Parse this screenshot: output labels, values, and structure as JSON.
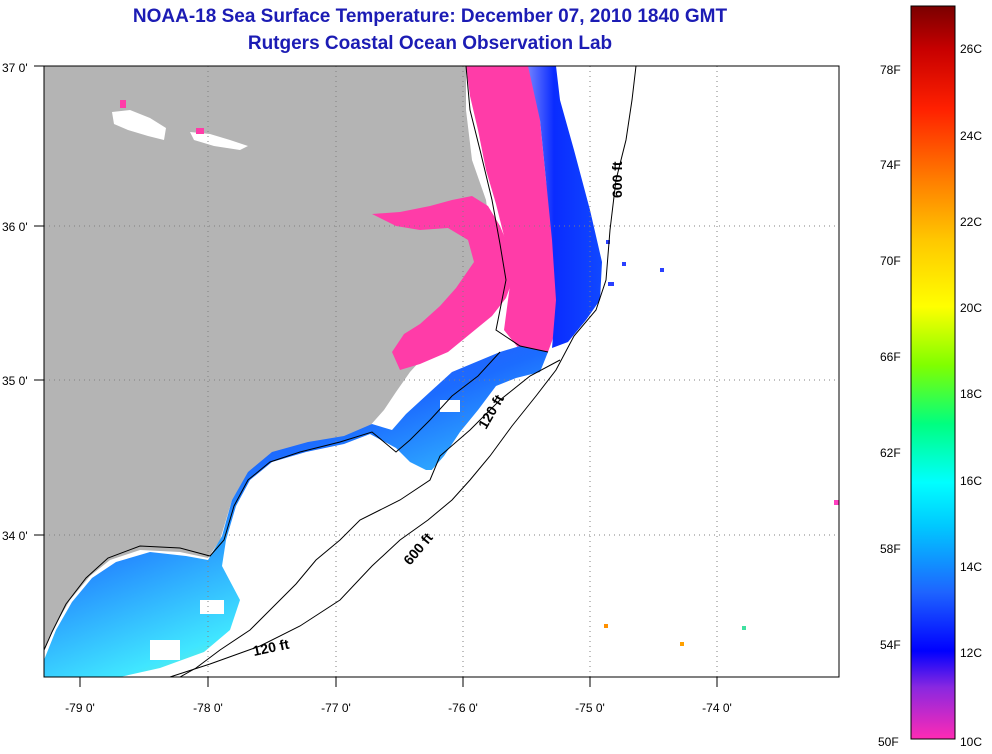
{
  "header": {
    "title": "NOAA-18 Sea Surface Temperature:  December 07, 2010 1840 GMT",
    "subtitle": "Rutgers Coastal Ocean Observation Lab"
  },
  "map": {
    "lat_labels": [
      "37 0'",
      "36 0'",
      "35 0'",
      "34 0'"
    ],
    "lon_labels": [
      "-79 0'",
      "-78 0'",
      "-77 0'",
      "-76 0'",
      "-75 0'",
      "-74 0'"
    ],
    "isobath_labels": [
      "600 ft",
      "120 ft",
      "600 ft",
      "120 ft"
    ],
    "colors": {
      "land": "#b4b4b4",
      "ocean_no_data": "#ffffff",
      "sound_water": "#ff3ca8"
    }
  },
  "colorbar": {
    "fahrenheit_labels": [
      "78F",
      "74F",
      "70F",
      "66F",
      "62F",
      "58F",
      "54F",
      "50F"
    ],
    "celsius_labels": [
      "26C",
      "24C",
      "22C",
      "20C",
      "18C",
      "16C",
      "14C",
      "12C",
      "10C"
    ],
    "stops": [
      "#ff2ab4",
      "#8a28e0",
      "#0000ff",
      "#1e64ff",
      "#00c8ff",
      "#00ffff",
      "#00ff80",
      "#80ff00",
      "#ffff00",
      "#ffc800",
      "#ff8000",
      "#ff2000",
      "#c80000",
      "#7a0000"
    ]
  }
}
